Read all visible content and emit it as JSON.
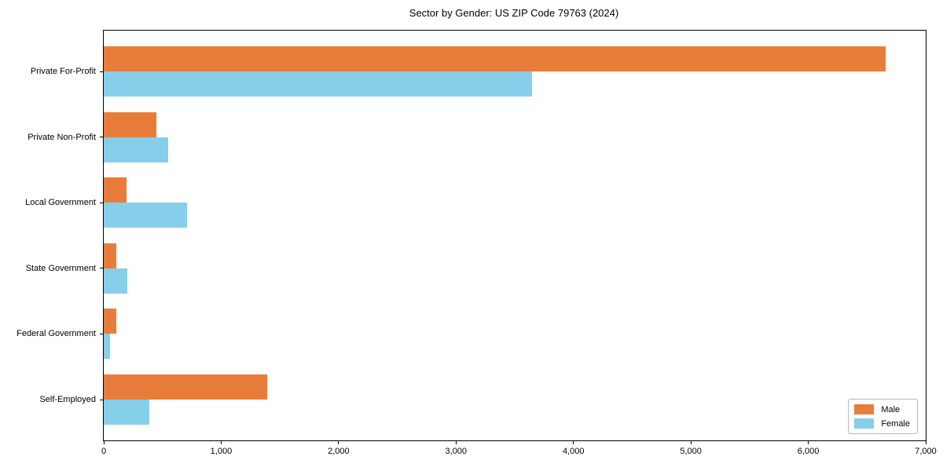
{
  "chart_data": {
    "type": "bar",
    "orientation": "horizontal",
    "title": "Sector by Gender: US ZIP Code 79763 (2024)",
    "categories": [
      "Private For-Profit",
      "Private Non-Profit",
      "Local Government",
      "State Government",
      "Federal Government",
      "Self-Employed"
    ],
    "series": [
      {
        "name": "Male",
        "color": "#e87d3b",
        "values": [
          6660,
          450,
          195,
          110,
          110,
          1390
        ]
      },
      {
        "name": "Female",
        "color": "#87ceeb",
        "values": [
          3650,
          550,
          710,
          200,
          55,
          390
        ]
      }
    ],
    "xlabel": "",
    "ylabel": "",
    "xlim": [
      0,
      7000
    ],
    "x_ticks": [
      {
        "value": 0,
        "label": "0"
      },
      {
        "value": 1000,
        "label": "1,000"
      },
      {
        "value": 2000,
        "label": "2,000"
      },
      {
        "value": 3000,
        "label": "3,000"
      },
      {
        "value": 4000,
        "label": "4,000"
      },
      {
        "value": 5000,
        "label": "5,000"
      },
      {
        "value": 6000,
        "label": "6,000"
      },
      {
        "value": 7000,
        "label": "7,000"
      }
    ],
    "grid": false,
    "legend_position": "lower right"
  }
}
